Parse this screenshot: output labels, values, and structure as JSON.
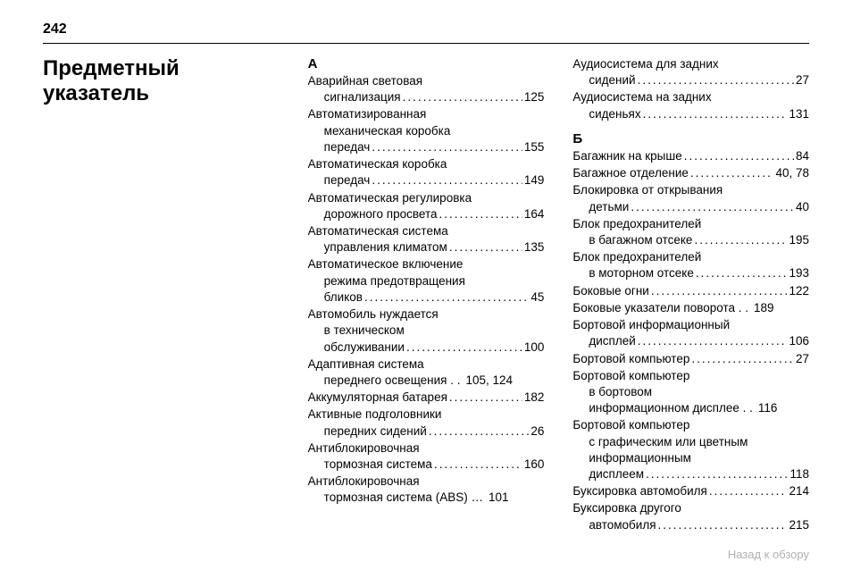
{
  "page_number": "242",
  "title_line1": "Предметный",
  "title_line2": "указатель",
  "footer": "Назад к обзору",
  "dots": "........................................................................",
  "col2": {
    "letter": "А",
    "entries": [
      {
        "lines": [
          "Аварийная световая"
        ],
        "last_indent": true,
        "last_text": "сигнализация",
        "page": "125"
      },
      {
        "lines": [
          "Автоматизированная",
          "механическая коробка"
        ],
        "last_indent": true,
        "last_text": "передач",
        "page": "155"
      },
      {
        "lines": [
          "Автоматическая коробка"
        ],
        "last_indent": true,
        "last_text": "передач",
        "page": "149"
      },
      {
        "lines": [
          "Автоматическая регулировка"
        ],
        "last_indent": true,
        "last_text": "дорожного просвета",
        "page": "164"
      },
      {
        "lines": [
          "Автоматическая система"
        ],
        "last_indent": true,
        "last_text": "управления климатом",
        "page": "135"
      },
      {
        "lines": [
          "Автоматическое включение",
          "режима предотвращения"
        ],
        "last_indent": true,
        "last_text": "бликов",
        "page": "45"
      },
      {
        "lines": [
          "Автомобиль нуждается",
          "в техническом"
        ],
        "last_indent": true,
        "last_text": "обслуживании",
        "page": "100"
      },
      {
        "lines": [
          "Адаптивная система"
        ],
        "last_indent": true,
        "last_text": "переднего освещения . .",
        "nodots": true,
        "page": "105, 124"
      },
      {
        "lines": [],
        "last_indent": false,
        "last_text": "Аккумуляторная батарея",
        "page": "182"
      },
      {
        "lines": [
          "Активные подголовники"
        ],
        "last_indent": true,
        "last_text": "передних сидений",
        "page": "26"
      },
      {
        "lines": [
          "Антиблокировочная"
        ],
        "last_indent": true,
        "last_text": "тормозная система",
        "page": "160"
      },
      {
        "lines": [
          "Антиблокировочная"
        ],
        "last_indent": true,
        "last_text": "тормозная система (ABS) …",
        "nodots": true,
        "page": "101"
      }
    ]
  },
  "col3": {
    "top_entries": [
      {
        "lines": [
          "Аудиосистема для задних"
        ],
        "last_indent": true,
        "last_text": "сидений",
        "page": "27"
      },
      {
        "lines": [
          "Аудиосистема на задних"
        ],
        "last_indent": true,
        "last_text": "сиденьях",
        "page": "131"
      }
    ],
    "letter": "Б",
    "entries": [
      {
        "lines": [],
        "last_indent": false,
        "last_text": "Багажник на крыше",
        "page": "84"
      },
      {
        "lines": [],
        "last_indent": false,
        "last_text": "Багажное отделение",
        "page": "40, 78"
      },
      {
        "lines": [
          "Блокировка от открывания"
        ],
        "last_indent": true,
        "last_text": "детьми",
        "page": "40"
      },
      {
        "lines": [
          "Блок предохранителей"
        ],
        "last_indent": true,
        "last_text": "в багажном отсеке",
        "page": "195"
      },
      {
        "lines": [
          "Блок предохранителей"
        ],
        "last_indent": true,
        "last_text": "в моторном отсеке",
        "page": "193"
      },
      {
        "lines": [],
        "last_indent": false,
        "last_text": "Боковые огни",
        "page": "122"
      },
      {
        "lines": [],
        "last_indent": false,
        "last_text": "Боковые указатели поворота . .",
        "nodots": true,
        "page": "189"
      },
      {
        "lines": [
          "Бортовой информационный"
        ],
        "last_indent": true,
        "last_text": "дисплей",
        "page": "106"
      },
      {
        "lines": [],
        "last_indent": false,
        "last_text": "Бортовой компьютер",
        "page": "27"
      },
      {
        "lines": [
          "Бортовой компьютер",
          "в бортовом"
        ],
        "last_indent": true,
        "last_text": "информационном дисплее . .",
        "nodots": true,
        "page": "116"
      },
      {
        "lines": [
          "Бортовой компьютер",
          "с графическим или цветным",
          "информационным"
        ],
        "last_indent": true,
        "last_text": "дисплеем",
        "page": "118"
      },
      {
        "lines": [],
        "last_indent": false,
        "last_text": "Буксировка автомобиля",
        "page": "214"
      },
      {
        "lines": [
          "Буксировка другого"
        ],
        "last_indent": true,
        "last_text": "автомобиля",
        "page": "215"
      }
    ]
  }
}
